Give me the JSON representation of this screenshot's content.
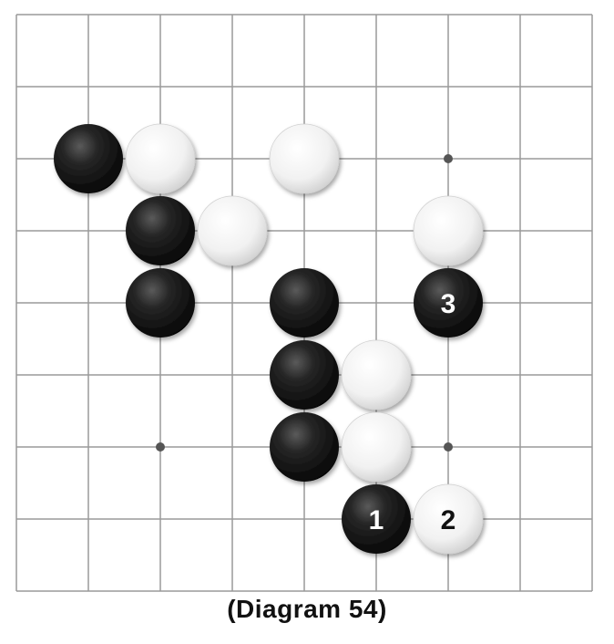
{
  "board": {
    "columns": 9,
    "rows": 9,
    "star_points": [
      [
        6,
        2
      ],
      [
        2,
        6
      ],
      [
        6,
        6
      ]
    ],
    "stones": [
      {
        "color": "black",
        "col": 1,
        "row": 2
      },
      {
        "color": "white",
        "col": 2,
        "row": 2
      },
      {
        "color": "white",
        "col": 4,
        "row": 2
      },
      {
        "color": "black",
        "col": 2,
        "row": 3
      },
      {
        "color": "white",
        "col": 3,
        "row": 3
      },
      {
        "color": "white",
        "col": 6,
        "row": 3
      },
      {
        "color": "black",
        "col": 2,
        "row": 4
      },
      {
        "color": "black",
        "col": 4,
        "row": 4
      },
      {
        "color": "black",
        "col": 6,
        "row": 4,
        "label": "3"
      },
      {
        "color": "black",
        "col": 4,
        "row": 5
      },
      {
        "color": "white",
        "col": 5,
        "row": 5
      },
      {
        "color": "black",
        "col": 4,
        "row": 6
      },
      {
        "color": "white",
        "col": 5,
        "row": 6
      },
      {
        "color": "black",
        "col": 5,
        "row": 7,
        "label": "1"
      },
      {
        "color": "white",
        "col": 6,
        "row": 7,
        "label": "2"
      }
    ]
  },
  "colors": {
    "grid_line": "#9a9a9a",
    "board_background": "#ffffff",
    "star_point": "#555555"
  },
  "caption": "(Diagram 54)"
}
